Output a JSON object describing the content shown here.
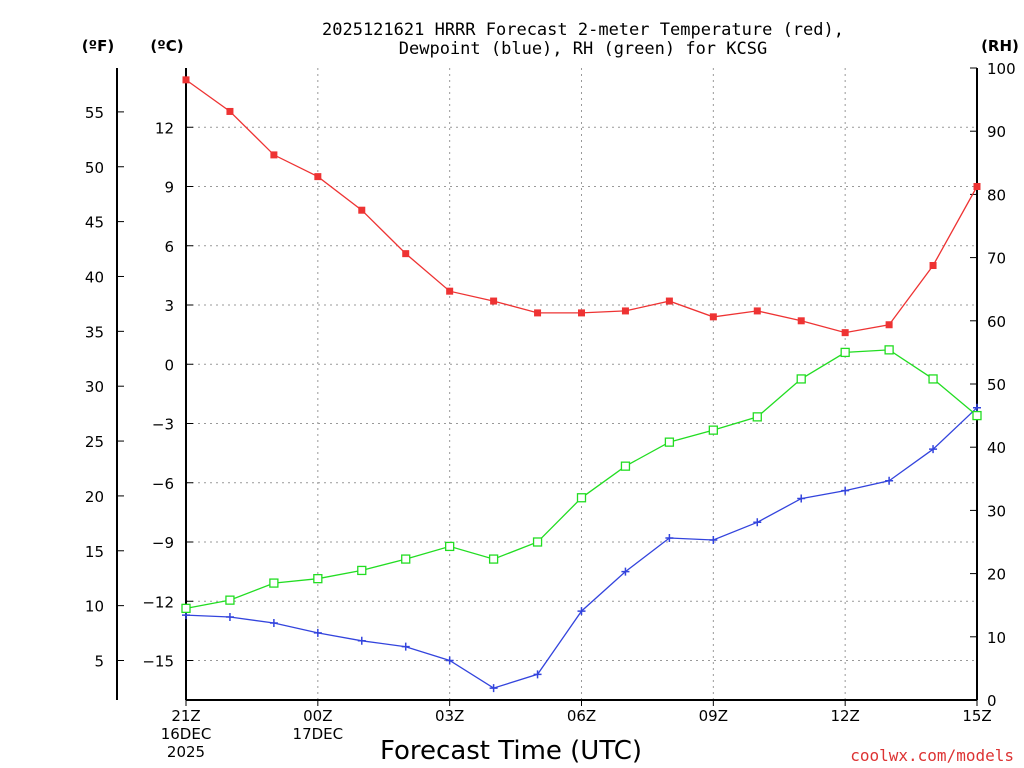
{
  "chart_data": {
    "type": "line",
    "title": "2025121621 HRRR Forecast 2-meter Temperature (red),",
    "subtitle": "Dewpoint (blue), RH (green) for KCSG",
    "xlabel": "Forecast Time (UTC)",
    "unit_labels": {
      "fahrenheit": "(ºF)",
      "celsius": "(ºC)",
      "rh": "(RH)"
    },
    "x_hours": [
      0,
      1,
      2,
      3,
      4,
      5,
      6,
      7,
      8,
      9,
      10,
      11,
      12,
      13,
      14,
      15,
      16,
      17,
      18
    ],
    "x_ticks": [
      {
        "hour": 0,
        "lines": [
          "21Z",
          "16DEC",
          "2025"
        ]
      },
      {
        "hour": 3,
        "lines": [
          "00Z",
          "17DEC"
        ]
      },
      {
        "hour": 6,
        "lines": [
          "03Z"
        ]
      },
      {
        "hour": 9,
        "lines": [
          "06Z"
        ]
      },
      {
        "hour": 12,
        "lines": [
          "09Z"
        ]
      },
      {
        "hour": 15,
        "lines": [
          "12Z"
        ]
      },
      {
        "hour": 18,
        "lines": [
          "15Z"
        ]
      }
    ],
    "c_ticks": [
      12,
      9,
      6,
      3,
      0,
      -3,
      -6,
      -9,
      -12,
      -15
    ],
    "c_tick_labels": [
      "12",
      "9",
      "6",
      "3",
      "0",
      "−3",
      "−6",
      "−9",
      "−12",
      "−15"
    ],
    "f_ticks": [
      55,
      50,
      45,
      40,
      35,
      30,
      25,
      20,
      15,
      10,
      5
    ],
    "rh_ticks": [
      100,
      90,
      80,
      70,
      60,
      50,
      40,
      30,
      20,
      10,
      0
    ],
    "c_range": [
      -17.0,
      15.0
    ],
    "rh_range": [
      0,
      100
    ],
    "series": [
      {
        "name": "Temperature",
        "unit": "C",
        "color": "#ee3333",
        "marker": "filled-square",
        "values": [
          14.4,
          12.8,
          10.6,
          9.5,
          7.8,
          5.6,
          3.7,
          3.2,
          2.6,
          2.6,
          2.7,
          3.2,
          2.4,
          2.7,
          2.2,
          1.6,
          2.0,
          5.0,
          9.0
        ]
      },
      {
        "name": "Dewpoint",
        "unit": "C",
        "color": "#3344dd",
        "marker": "plus",
        "values": [
          -12.7,
          -12.8,
          -13.1,
          -13.6,
          -14.0,
          -14.3,
          -15.0,
          -16.4,
          -15.7,
          -12.5,
          -10.5,
          -8.8,
          -8.9,
          -8.0,
          -6.8,
          -6.4,
          -5.9,
          -4.3,
          -2.2
        ]
      },
      {
        "name": "RH",
        "unit": "%",
        "color": "#22dd22",
        "marker": "open-square",
        "values": [
          14.5,
          15.8,
          18.5,
          19.2,
          20.5,
          22.3,
          24.3,
          22.3,
          25.0,
          32.0,
          37.0,
          40.8,
          42.7,
          44.8,
          50.8,
          55.0,
          55.4,
          50.8,
          45.0
        ]
      }
    ],
    "credit": "coolwx.com/models",
    "credit_color": "#dd3333"
  }
}
